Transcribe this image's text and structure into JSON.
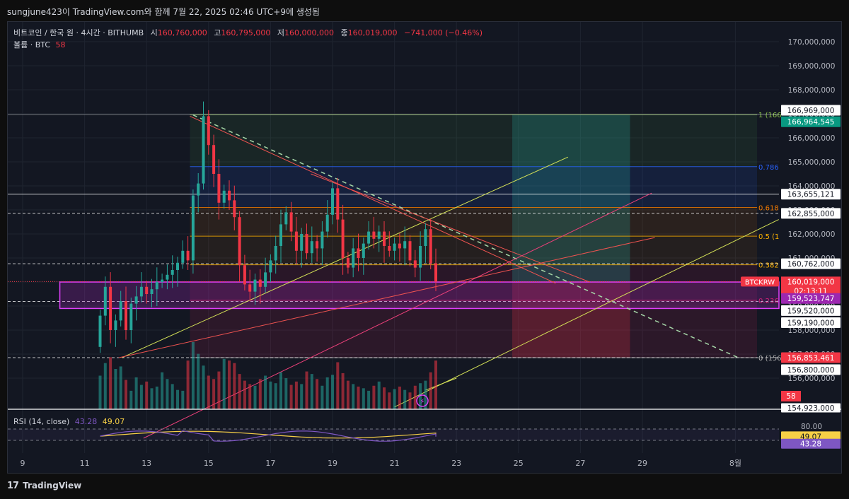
{
  "header": {
    "snapshot_text": "sungjune423이 TradingView.com와 함께 7월 22, 2025 02:46 UTC+9에 생성됨"
  },
  "legend": {
    "symbol": "비트코인 / 한국 원 · 4시간 · BITHUMB",
    "open_label": "시",
    "open": "160,760,000",
    "high_label": "고",
    "high": "160,795,000",
    "low_label": "저",
    "low": "160,000,000",
    "close_label": "종",
    "close": "160,019,000",
    "change": "−741,000 (−0.46%)",
    "volume_label": "볼륨 · BTC",
    "volume": "58"
  },
  "rsi_legend": {
    "label": "RSI (14, close)",
    "rsi": "43.28",
    "ma": "49.07"
  },
  "footer": {
    "brand_mark": "17",
    "brand": "TradingView"
  },
  "colors": {
    "background": "#131722",
    "up": "#26a69a",
    "down": "#f23645",
    "text": "#d1d4dc",
    "rsi": "#7e57c2",
    "rsi_ma": "#f7d046"
  },
  "chart_data": [
    {
      "type": "candlestick",
      "symbol": "BTCKRW",
      "exchange": "BITHUMB",
      "interval": "4h",
      "ylim": [
        154923000,
        170500000
      ],
      "y_ticks": [
        156000000,
        157000000,
        158000000,
        159000000,
        160000000,
        161000000,
        162000000,
        163000000,
        164000000,
        165000000,
        166000000,
        167000000,
        168000000,
        169000000,
        170000000
      ],
      "y_tick_labels": [
        "156,000,000",
        "157,000,000",
        "158,000,000",
        "159,000,000",
        "160,000,000",
        "161,000,000",
        "162,000,000",
        "163,000,000",
        "164,000,000",
        "165,000,000",
        "166,000,000",
        "167,000,000",
        "168,000,000",
        "169,000,000",
        "170,000,000"
      ],
      "x_labels": [
        {
          "day": 9,
          "label": "9"
        },
        {
          "day": 11,
          "label": "11"
        },
        {
          "day": 13,
          "label": "13"
        },
        {
          "day": 15,
          "label": "15"
        },
        {
          "day": 17,
          "label": "17"
        },
        {
          "day": 19,
          "label": "19"
        },
        {
          "day": 21,
          "label": "21"
        },
        {
          "day": 23,
          "label": "23"
        },
        {
          "day": 25,
          "label": "25"
        },
        {
          "day": 27,
          "label": "27"
        },
        {
          "day": 29,
          "label": "29"
        },
        {
          "day": 32,
          "label": "8월"
        }
      ],
      "candles_start_day": 11.5,
      "candles_per_day": 6,
      "closes": [
        158600000,
        159800000,
        158000000,
        158400000,
        159200000,
        158000000,
        159100000,
        159400000,
        159800000,
        159500000,
        159700000,
        160000000,
        160100000,
        160300000,
        160500000,
        160800000,
        161300000,
        160900000,
        163600000,
        164100000,
        166900000,
        165700000,
        164500000,
        163300000,
        163800000,
        163400000,
        162700000,
        160700000,
        159900000,
        159600000,
        160100000,
        159800000,
        160400000,
        160900000,
        161500000,
        162400000,
        162900000,
        162100000,
        161300000,
        162000000,
        161200000,
        161700000,
        161400000,
        162100000,
        162800000,
        163900000,
        162600000,
        161000000,
        160600000,
        161400000,
        161000000,
        161600000,
        162100000,
        161800000,
        162100000,
        161500000,
        161300000,
        161600000,
        161400000,
        161700000,
        160900000,
        160600000,
        161500000,
        162200000,
        160779000,
        160019000
      ],
      "first_open": 157300000,
      "volumes": [
        40,
        55,
        62,
        48,
        51,
        35,
        22,
        38,
        29,
        33,
        25,
        27,
        44,
        36,
        30,
        23,
        22,
        58,
        80,
        66,
        52,
        40,
        36,
        45,
        60,
        58,
        55,
        42,
        34,
        30,
        28,
        36,
        40,
        33,
        31,
        44,
        37,
        29,
        33,
        30,
        45,
        42,
        36,
        28,
        38,
        41,
        56,
        43,
        34,
        30,
        27,
        25,
        22,
        28,
        33,
        26,
        20,
        24,
        27,
        23,
        20,
        28,
        31,
        34,
        44,
        58
      ],
      "price_labels": [
        "166,969,000",
        "166,964,545",
        "163,655,121",
        "162,855,000",
        "160,762,000",
        "160,019,000",
        "159,523,747",
        "159,520,000",
        "159,190,000",
        "156,853,461",
        "156,800,000",
        "154,923,000"
      ],
      "symbol_tag": "BTCKRW",
      "countdown": "02:13:11",
      "volume_badge": "58",
      "fib_labels": [
        "1 (166",
        "0.786",
        "0.618",
        "0.5 (1",
        "0.382",
        "0.236",
        "0 (156"
      ]
    },
    {
      "type": "line",
      "name": "RSI (14, close)",
      "ylim": [
        20,
        80
      ],
      "y_tick_labels": [
        "80.00"
      ],
      "levels": [
        70,
        30
      ],
      "series": [
        {
          "name": "RSI",
          "last": 43.28
        },
        {
          "name": "RSI MA",
          "last": 49.07
        }
      ]
    }
  ]
}
